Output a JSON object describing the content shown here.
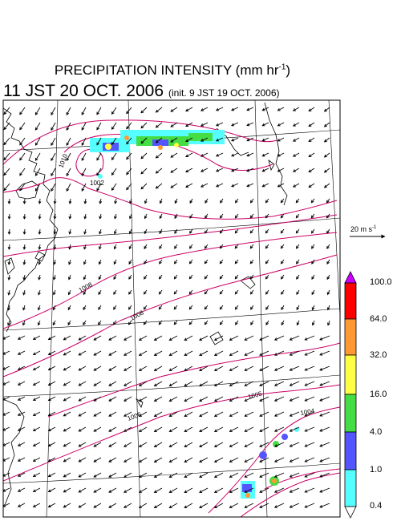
{
  "title": {
    "main": "PRECIPITATION INTENSITY (mm hr",
    "unit_exp": "-1",
    "close": ")"
  },
  "valid_time": "11 JST 20 OCT. 2006",
  "init_time": "(init. 9 JST 19 OCT. 2006)",
  "vector_scale": {
    "label": "20 m s",
    "unit_exp": "-1"
  },
  "colorbar": {
    "levels": [
      "100.0",
      "64.0",
      "32.0",
      "16.0",
      "4.0",
      "1.0",
      "0.4"
    ],
    "colors": [
      "#ff0000",
      "#ff9933",
      "#ffff44",
      "#44dd44",
      "#5555ff",
      "#55ffff"
    ],
    "over_color": "#cc00ff",
    "under_color": "#ffffff"
  },
  "isobars": {
    "color": "#cc0066",
    "labels": [
      "1010",
      "1002",
      "1008",
      "1008",
      "1005",
      "1006",
      "1004"
    ]
  },
  "colors": {
    "coastline": "#000000",
    "grid": "#000000",
    "wind": "#000000"
  }
}
